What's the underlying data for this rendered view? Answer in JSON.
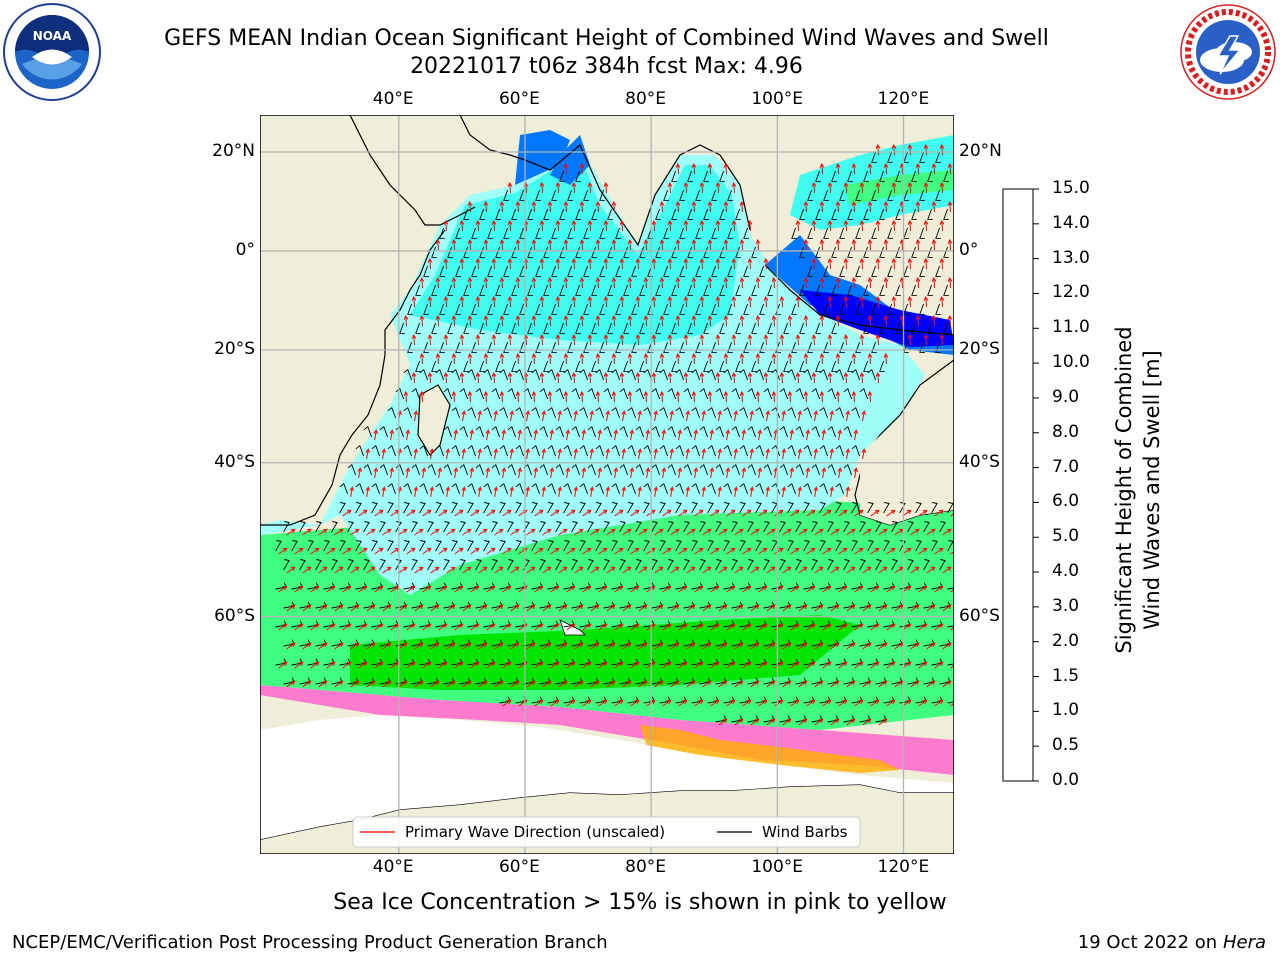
{
  "title": {
    "line1": "GEFS MEAN Indian Ocean Significant Height of Combined Wind Waves and Swell",
    "line2": "20221017 t06z 384h fcst   Max: 4.96"
  },
  "logos": {
    "left": {
      "icon": "noaa-logo-icon",
      "text": "NOAA",
      "ring_text": "NATIONAL OCEANIC AND ATMOSPHERIC ADMINISTRATION · U.S. DEPARTMENT OF COMMERCE"
    },
    "right": {
      "icon": "nws-logo-icon",
      "ring_text": "NATIONAL WEATHER SERVICE"
    }
  },
  "map": {
    "lon_ticks": [
      "40°E",
      "60°E",
      "80°E",
      "100°E",
      "120°E"
    ],
    "lon_values": [
      40,
      60,
      80,
      100,
      120
    ],
    "lat_ticks": [
      "20°N",
      "0°",
      "20°S",
      "40°S",
      "60°S"
    ],
    "lat_values": [
      20,
      0,
      -20,
      -40,
      -60
    ],
    "extent": {
      "lon_min": 18,
      "lon_max": 128,
      "lat_min": -77,
      "lat_max": 27
    },
    "colors": {
      "land": "#efeed9",
      "coast": "#000000",
      "grid": "#b3b3b3",
      "arrow": "#ff0000",
      "barb": "#000000"
    }
  },
  "legend": {
    "primary_wave": "Primary Wave Direction (unscaled)",
    "wind_barbs": "Wind Barbs"
  },
  "colorbar": {
    "label_line1": "Significant Height of Combined",
    "label_line2": "Wind Waves and Swell [m]",
    "ticks": [
      "0.0",
      "0.5",
      "1.0",
      "1.5",
      "2.0",
      "3.0",
      "4.0",
      "5.0",
      "6.0",
      "7.0",
      "8.0",
      "9.0",
      "10.0",
      "11.0",
      "12.0",
      "13.0",
      "14.0",
      "15.0"
    ],
    "colors": [
      "#0000ff",
      "#0077ff",
      "#00ffff",
      "#40fff0",
      "#a0fff8",
      "#40ff80",
      "#00e600",
      "#55ee00",
      "#a8ee00",
      "#d4f000",
      "#f0f000",
      "#ffe600",
      "#ffb000",
      "#ff8800",
      "#ff5500",
      "#ff2200",
      "#ff0000"
    ]
  },
  "caption": "Sea Ice Concentration > 15% is shown in pink to yellow",
  "footer": {
    "left": "NCEP/EMC/Verification Post Processing Product Generation Branch",
    "right_prefix": "19 Oct 2022 on ",
    "right_host": "Hera"
  }
}
